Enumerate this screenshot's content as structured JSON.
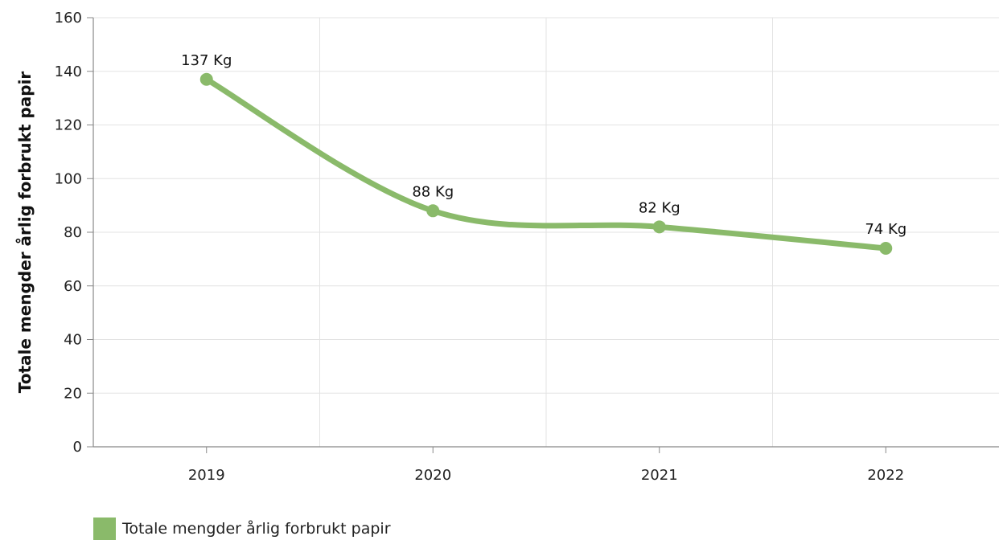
{
  "chart_data": {
    "type": "line",
    "title": "",
    "xlabel": "",
    "ylabel": "Totale mengder årlig forbrukt papir",
    "categories": [
      "2019",
      "2020",
      "2021",
      "2022"
    ],
    "series": [
      {
        "name": "Totale mengder årlig forbrukt papir",
        "values": [
          137,
          88,
          82,
          74
        ],
        "labels": [
          "137 Kg",
          "88 Kg",
          "82 Kg",
          "74 Kg"
        ],
        "color": "#8aba6a"
      }
    ],
    "ylim": [
      0,
      160
    ],
    "yticks": [
      "0",
      "20",
      "40",
      "60",
      "80",
      "100",
      "120",
      "140",
      "160"
    ],
    "grid": true,
    "legend": "bottom-left"
  }
}
